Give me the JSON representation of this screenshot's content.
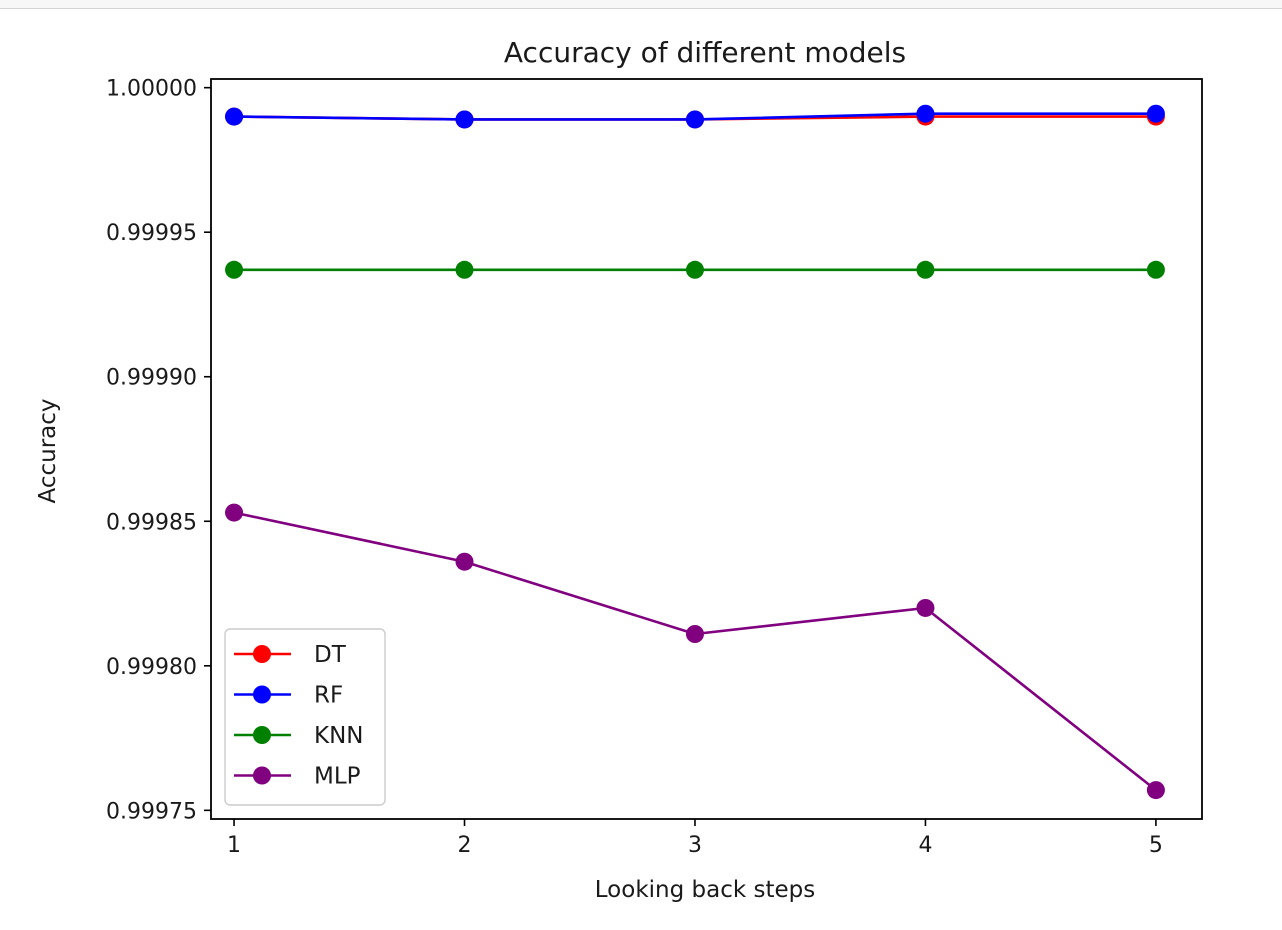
{
  "chart_data": {
    "type": "line",
    "title": "Accuracy of different models",
    "xlabel": "Looking back steps",
    "ylabel": "Accuracy",
    "x": [
      1,
      2,
      3,
      4,
      5
    ],
    "xticks": [
      "1",
      "2",
      "3",
      "4",
      "5"
    ],
    "xlim": [
      0.9,
      5.2
    ],
    "ylim": [
      0.999747,
      1.000003
    ],
    "yticks": [
      "0.99975",
      "0.99980",
      "0.99985",
      "0.99990",
      "0.99995",
      "1.00000"
    ],
    "ytick_values": [
      0.99975,
      0.9998,
      0.99985,
      0.9999,
      0.99995,
      1.0
    ],
    "grid": false,
    "legend_position": "lower-left",
    "marker": "circle",
    "series": [
      {
        "name": "DT",
        "color": "#ff0000",
        "values": [
          0.99999,
          0.999989,
          0.999989,
          0.99999,
          0.99999
        ]
      },
      {
        "name": "RF",
        "color": "#0000ff",
        "values": [
          0.99999,
          0.999989,
          0.999989,
          0.999991,
          0.999991
        ]
      },
      {
        "name": "KNN",
        "color": "#008000",
        "values": [
          0.999937,
          0.999937,
          0.999937,
          0.999937,
          0.999937
        ]
      },
      {
        "name": "MLP",
        "color": "#800080",
        "values": [
          0.999853,
          0.999836,
          0.999811,
          0.99982,
          0.999757
        ]
      }
    ]
  }
}
